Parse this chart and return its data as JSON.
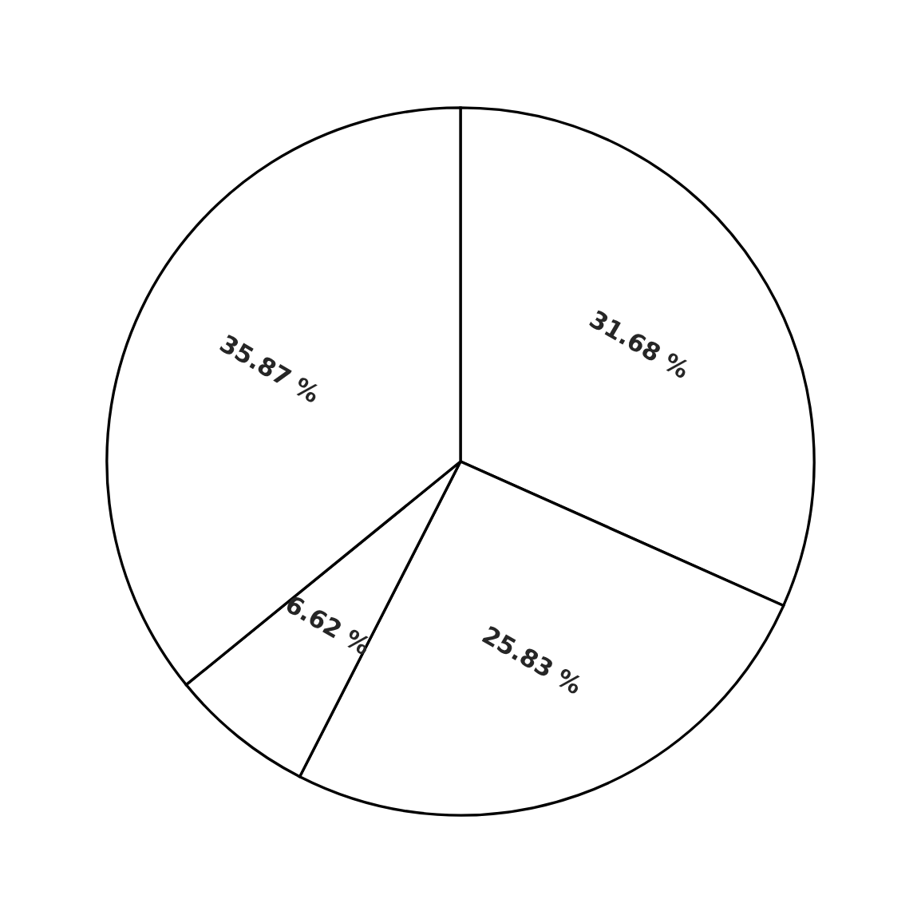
{
  "chart_data": {
    "type": "pie",
    "categories": [
      null,
      null,
      null,
      null
    ],
    "values": [
      31.68,
      25.83,
      6.62,
      35.87
    ],
    "value_labels": [
      "31.68 %",
      "25.83 %",
      "6.62 %",
      "35.87 %"
    ],
    "colors": [
      "#ffffff",
      "#ffffff",
      "#ffffff",
      "#ffffff"
    ]
  }
}
